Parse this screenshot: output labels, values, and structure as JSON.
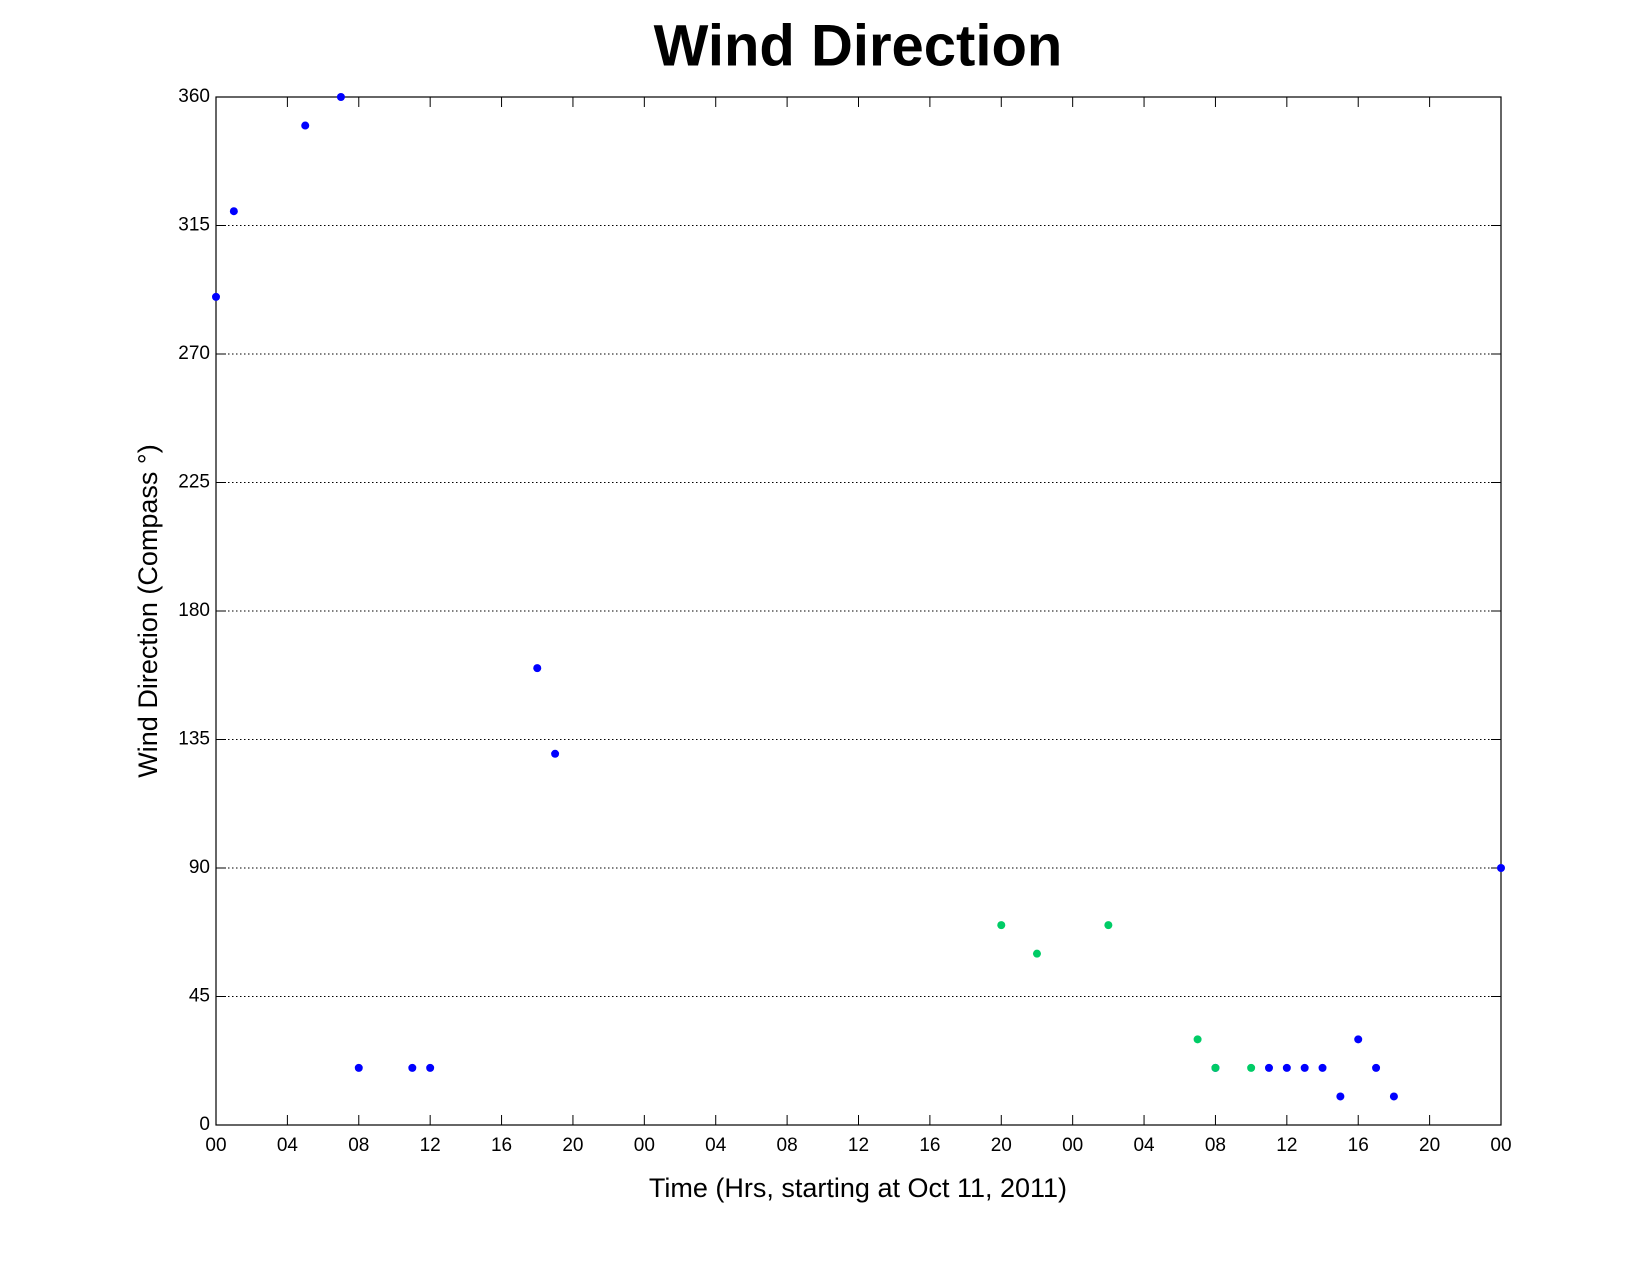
{
  "chart_data": {
    "type": "scatter",
    "title": "Wind Direction",
    "x_label": "Time (Hrs, starting at Oct 11, 2011)",
    "y_label": "Wind Direction (Compass °)",
    "xlim": [
      0,
      72
    ],
    "ylim": [
      0,
      360
    ],
    "xticks": [
      {
        "value": 0,
        "label": "00"
      },
      {
        "value": 4,
        "label": "04"
      },
      {
        "value": 8,
        "label": "08"
      },
      {
        "value": 12,
        "label": "12"
      },
      {
        "value": 16,
        "label": "16"
      },
      {
        "value": 20,
        "label": "20"
      },
      {
        "value": 24,
        "label": "00"
      },
      {
        "value": 28,
        "label": "04"
      },
      {
        "value": 32,
        "label": "08"
      },
      {
        "value": 36,
        "label": "12"
      },
      {
        "value": 40,
        "label": "16"
      },
      {
        "value": 44,
        "label": "20"
      },
      {
        "value": 48,
        "label": "00"
      },
      {
        "value": 52,
        "label": "04"
      },
      {
        "value": 56,
        "label": "08"
      },
      {
        "value": 60,
        "label": "12"
      },
      {
        "value": 64,
        "label": "16"
      },
      {
        "value": 68,
        "label": "20"
      },
      {
        "value": 72,
        "label": "00"
      }
    ],
    "yticks": [
      0,
      45,
      90,
      135,
      180,
      225,
      270,
      315,
      360
    ],
    "grid": true,
    "series": [
      {
        "color": "#0000ff",
        "x": [
          0,
          1,
          5,
          7,
          8,
          11,
          12,
          18,
          19,
          56,
          59,
          60,
          61,
          62,
          63,
          64,
          65,
          66,
          72
        ],
        "values": [
          290,
          320,
          350,
          360,
          20,
          20,
          20,
          160,
          130,
          20,
          20,
          20,
          20,
          20,
          10,
          30,
          20,
          10,
          90
        ]
      },
      {
        "color": "#00cc66",
        "x": [
          44,
          46,
          50,
          55,
          56,
          58
        ],
        "values": [
          70,
          60,
          70,
          30,
          20,
          20
        ]
      }
    ]
  }
}
